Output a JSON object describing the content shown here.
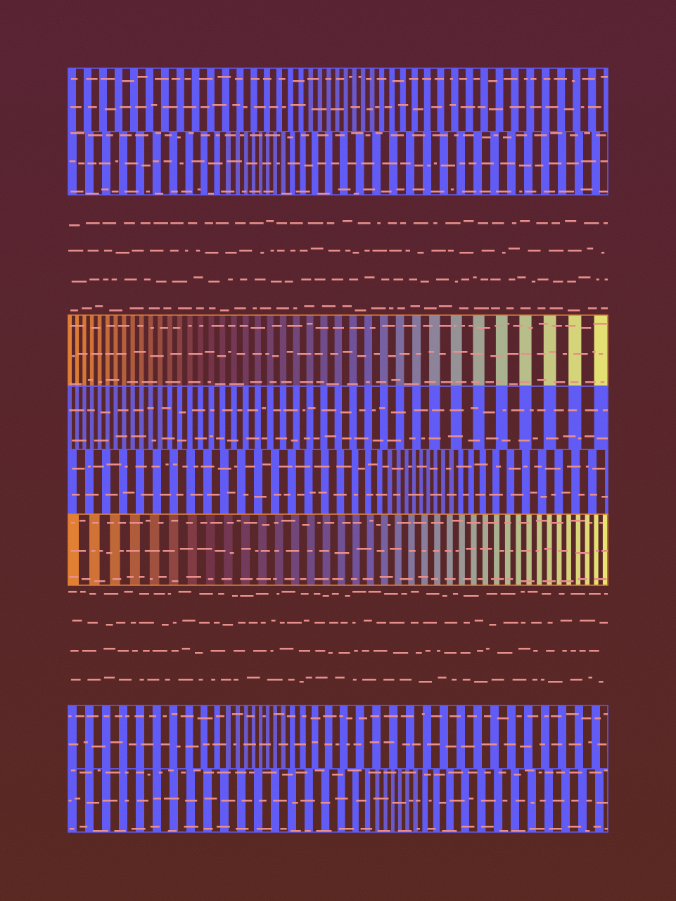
{
  "artwork": {
    "style": "generative striped bands with dashed pink lines",
    "colors": {
      "background_top": "#521a2c",
      "background_bottom": "#532019",
      "stripe_blue": "#5b55f5",
      "stripe_muted": "#6a4fa0",
      "dash_pink": "#e78a87",
      "gradient_orange": "#e07a2a",
      "gradient_maroon": "#6e2a3e",
      "gradient_sage": "#a8b28a",
      "gradient_yellow": "#ece468"
    },
    "bands": [
      {
        "id": "band-top-1",
        "palette": "blue",
        "density": "pulse-center"
      },
      {
        "id": "band-top-2",
        "palette": "blue",
        "density": "pulse-left"
      },
      {
        "id": "band-mid-1",
        "palette": "warm-gradient",
        "density": "dense-left"
      },
      {
        "id": "band-mid-2",
        "palette": "blue",
        "density": "dense-left"
      },
      {
        "id": "band-mid-3",
        "palette": "blue",
        "density": "dense-center-right"
      },
      {
        "id": "band-mid-4",
        "palette": "warm-gradient",
        "density": "dense-right"
      },
      {
        "id": "band-bottom-1",
        "palette": "blue",
        "density": "pulse-left"
      },
      {
        "id": "band-bottom-2",
        "palette": "blue",
        "density": "pulse-center-right"
      }
    ],
    "dash_rows": 8
  }
}
